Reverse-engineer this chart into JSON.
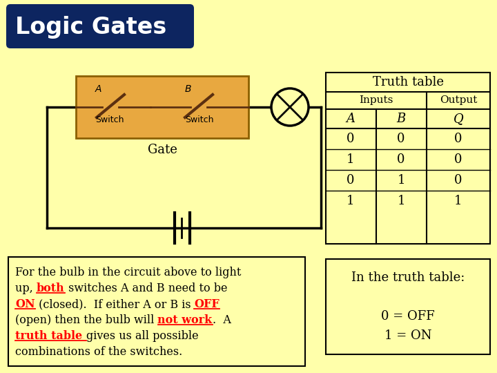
{
  "background_color": "#FFFFAA",
  "title": "Logic Gates",
  "title_bg": "#0d2560",
  "title_text_color": "#FFFFFF",
  "gate_box_color": "#E8A840",
  "gate_box_edge": "#8B6000",
  "truth_table": {
    "header1": "Truth table",
    "col_headers": [
      "A",
      "B",
      "Q"
    ],
    "inputs_label": "Inputs",
    "output_label": "Output",
    "rows": [
      [
        0,
        0,
        0
      ],
      [
        1,
        0,
        0
      ],
      [
        0,
        1,
        0
      ],
      [
        1,
        1,
        1
      ]
    ]
  },
  "side_note": [
    "In the truth table:",
    "",
    "0 = OFF",
    "1 = ON"
  ]
}
